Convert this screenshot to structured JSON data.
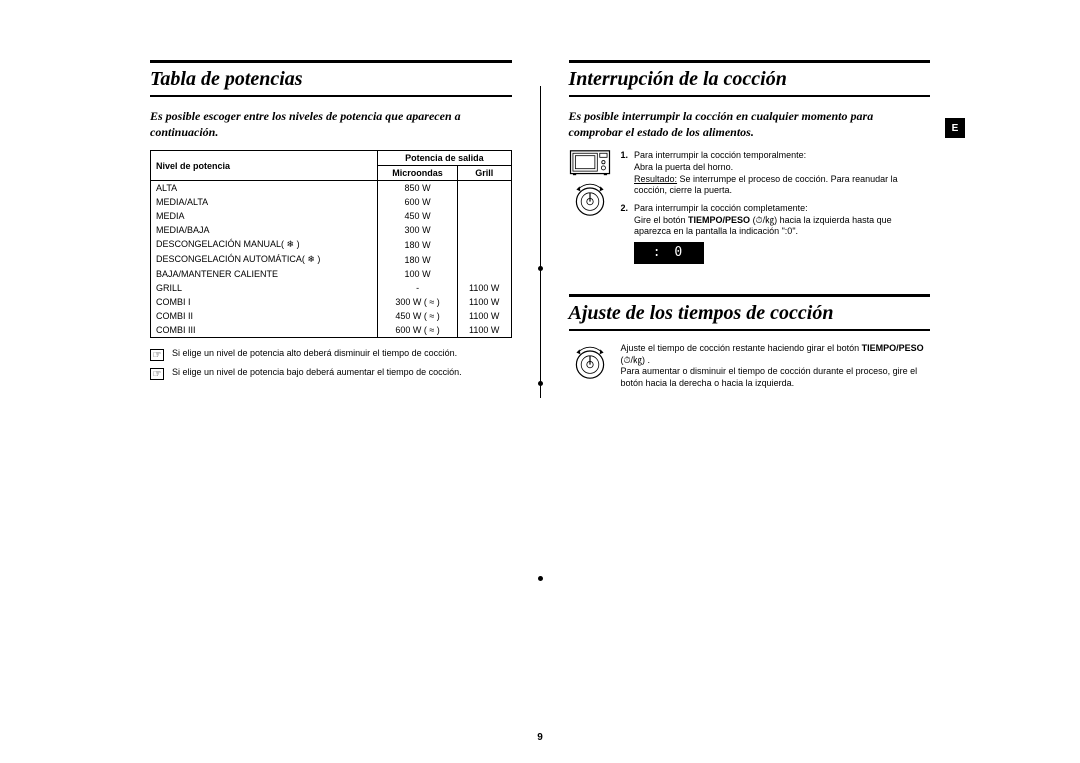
{
  "tab_marker": "E",
  "page_number": "9",
  "left": {
    "title": "Tabla de potencias",
    "intro": "Es posible escoger entre los niveles de potencia que aparecen a continuación.",
    "table": {
      "header_level": "Nivel de potencia",
      "header_output": "Potencia de salida",
      "header_micro": "Microondas",
      "header_grill": "Grill",
      "rows": [
        {
          "level": "ALTA",
          "micro": "850 W",
          "grill": ""
        },
        {
          "level": "MEDIA/ALTA",
          "micro": "600 W",
          "grill": ""
        },
        {
          "level": "MEDIA",
          "micro": "450 W",
          "grill": ""
        },
        {
          "level": "MEDIA/BAJA",
          "micro": "300 W",
          "grill": ""
        },
        {
          "level": "DESCONGELACIÓN MANUAL( ❄ )",
          "micro": "180 W",
          "grill": ""
        },
        {
          "level": "DESCONGELACIÓN AUTOMÁTICA( ❄ )",
          "micro": "180 W",
          "grill": ""
        },
        {
          "level": "BAJA/MANTENER CALIENTE",
          "micro": "100 W",
          "grill": ""
        },
        {
          "level": "GRILL",
          "micro": "-",
          "grill": "1100 W"
        },
        {
          "level": "COMBI I",
          "micro": "300 W ( ≈ )",
          "grill": "1100 W"
        },
        {
          "level": "COMBI II",
          "micro": "450 W ( ≈ )",
          "grill": "1100 W"
        },
        {
          "level": "COMBI III",
          "micro": "600 W ( ≈ )",
          "grill": "1100 W"
        }
      ]
    },
    "notes": [
      "Si elige un nivel de potencia alto deberá disminuir el tiempo de cocción.",
      "Si elige un nivel de potencia bajo deberá aumentar el tiempo de cocción."
    ],
    "note_icon": "☞"
  },
  "right_a": {
    "title": "Interrupción de la cocción",
    "intro": "Es posible interrumpir la cocción en cualquier momento para comprobar el estado de los alimentos.",
    "step1_lead": "Para interrumpir la cocción temporalmente:",
    "step1_line2": "Abra la puerta del horno.",
    "step1_result_label": "Resultado:",
    "step1_result": " Se interrumpe el proceso de cocción. Para reanudar la cocción, cierre la puerta.",
    "step2_lead": "Para interrumpir la cocción completamente:",
    "step2_line2a": "Gire el botón ",
    "step2_bold": "TIEMPO/PESO",
    "step2_line2b": " (⏱/㎏) hacia la izquierda hasta que aparezca en la pantalla la indicación \":0\".",
    "display": ":  0"
  },
  "right_b": {
    "title": "Ajuste de los tiempos de cocción",
    "para_a": "Ajuste el tiempo de cocción restante haciendo girar el botón ",
    "para_bold": "TIEMPO/PESO",
    "para_b": " (⏱/㎏) .",
    "para2": "Para aumentar o disminuir el tiempo de cocción durante el proceso, gire el botón hacia la derecha o hacia la izquierda."
  }
}
